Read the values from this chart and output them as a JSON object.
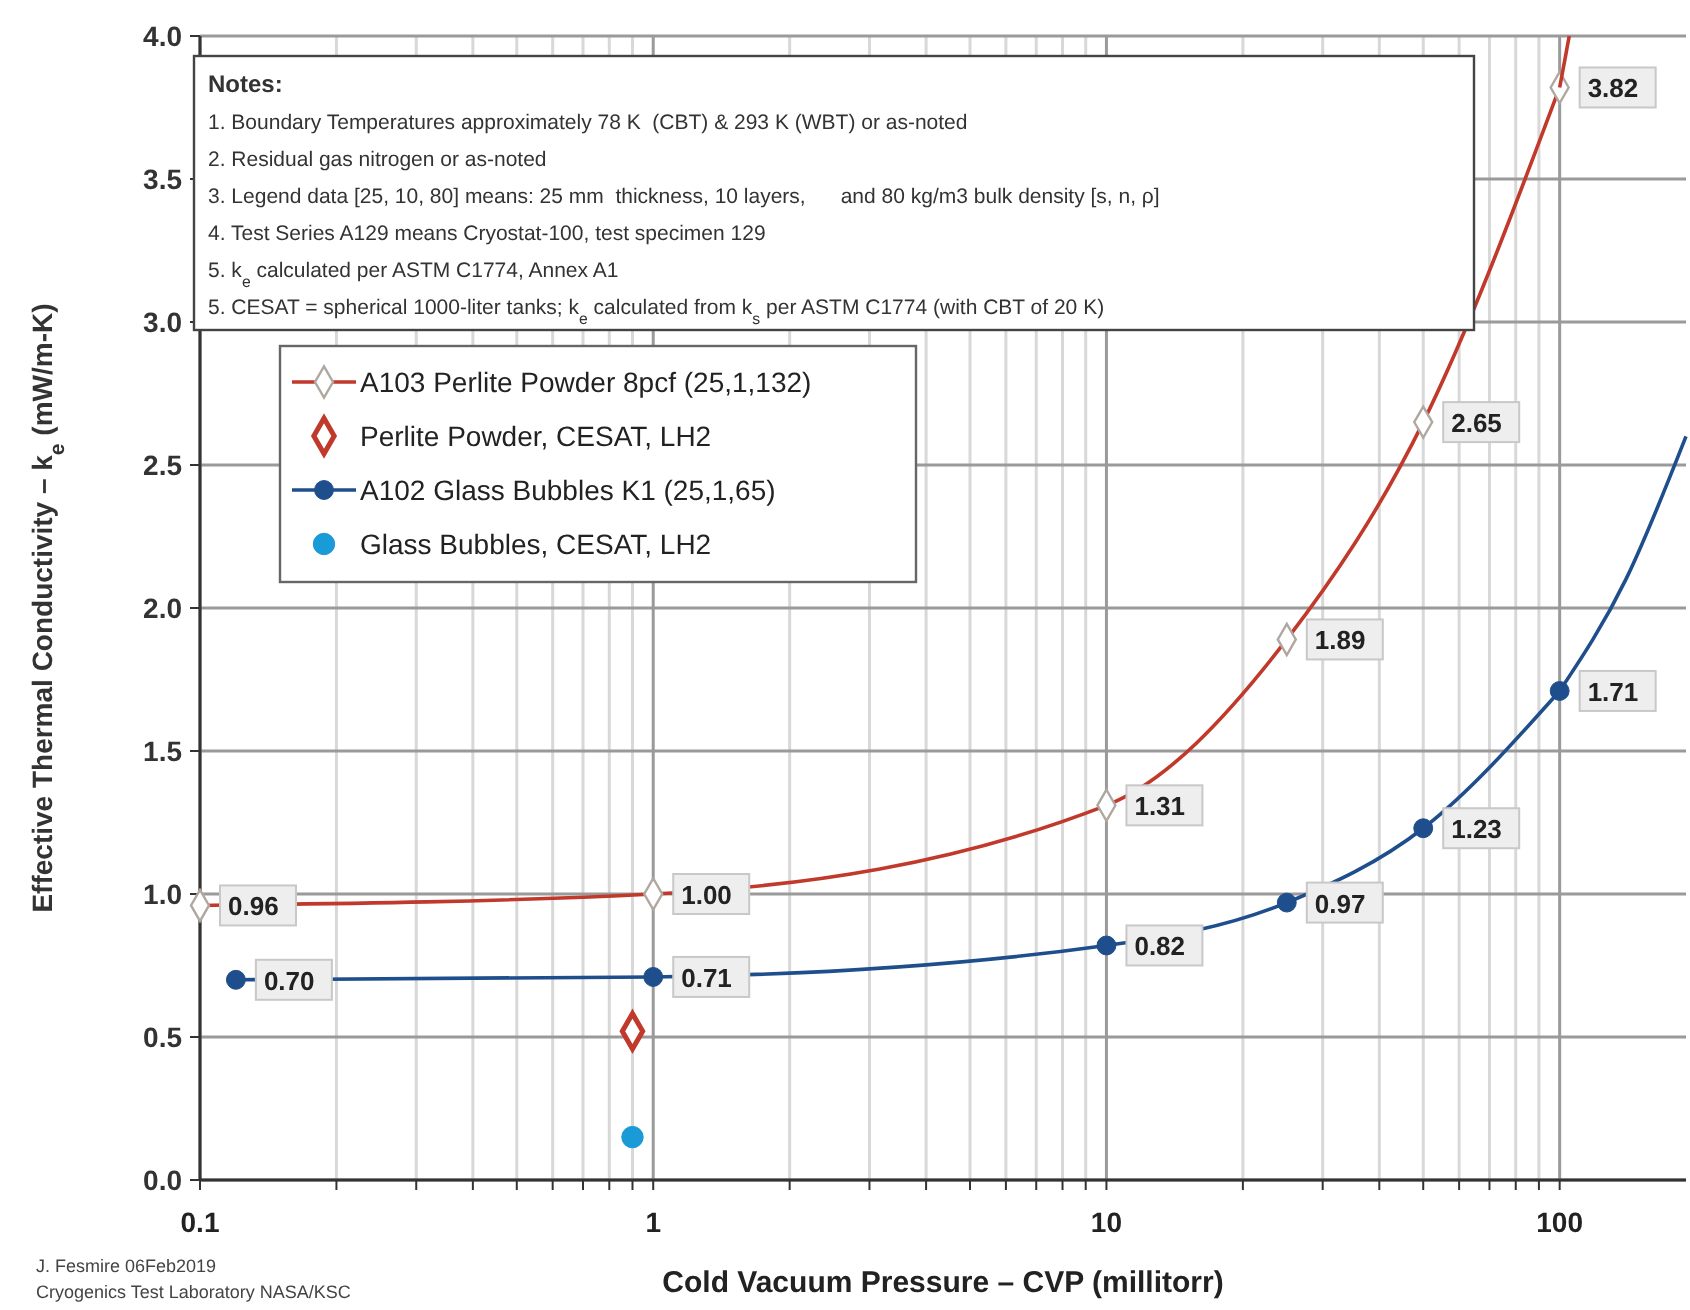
{
  "chart_data": {
    "type": "line",
    "xlabel": "Cold Vacuum Pressure – CVP (millitorr)",
    "ylabel": "Effective Thermal Conductivity – k$_{e}$ (mW/m-K)",
    "log": "x",
    "xlim": [
      0.1,
      190
    ],
    "ylim": [
      0,
      4
    ],
    "xticks": [
      0.1,
      {
        "value": 0.2,
        "label": null
      },
      {
        "value": 0.3,
        "label": null
      },
      {
        "value": 0.4,
        "label": null
      },
      {
        "value": 0.5,
        "label": null
      },
      {
        "value": 0.6,
        "label": null
      },
      {
        "value": 0.7,
        "label": null
      },
      {
        "value": 0.8,
        "label": null
      },
      {
        "value": 0.9,
        "label": null
      },
      1,
      {
        "value": 2,
        "label": null
      },
      {
        "value": 3,
        "label": null
      },
      {
        "value": 4,
        "label": null
      },
      {
        "value": 5,
        "label": null
      },
      {
        "value": 6,
        "label": null
      },
      {
        "value": 7,
        "label": null
      },
      {
        "value": 8,
        "label": null
      },
      {
        "value": 9,
        "label": null
      },
      10,
      {
        "value": 20,
        "label": null
      },
      {
        "value": 30,
        "label": null
      },
      {
        "value": 40,
        "label": null
      },
      {
        "value": 50,
        "label": null
      },
      {
        "value": 60,
        "label": null
      },
      {
        "value": 70,
        "label": null
      },
      {
        "value": 80,
        "label": null
      },
      {
        "value": 90,
        "label": null
      },
      100
    ],
    "yticks": [
      {
        "value": 0,
        "label": "0.0"
      },
      {
        "value": 0.5,
        "label": "0.5"
      },
      {
        "value": 1,
        "label": "1.0"
      },
      {
        "value": 1.5,
        "label": "1.5"
      },
      {
        "value": 2,
        "label": "2.0"
      },
      {
        "value": 2.5,
        "label": "2.5"
      },
      {
        "value": 3,
        "label": "3.0"
      },
      {
        "value": 3.5,
        "label": "3.5"
      },
      {
        "value": 4,
        "label": "4.0"
      }
    ],
    "grid": true,
    "legend": "top left",
    "series": [
      {
        "name": "A103 Perlite Powder 8pcf (25,1,132)",
        "marker": "diamond",
        "color": "#c0392b",
        "x": [
          0.1,
          1,
          10,
          25,
          50,
          100
        ],
        "values": [
          0.96,
          1.0,
          1.31,
          1.89,
          2.65,
          3.82
        ],
        "value_labels": [
          "0.96",
          "1.00",
          "1.31",
          "1.89",
          "2.65",
          "3.82"
        ]
      },
      {
        "name": "Perlite Powder, CESAT, LH2",
        "type": "scatter",
        "marker": "diamond",
        "color": "#c0392b",
        "x": [
          0.9
        ],
        "values": [
          0.52
        ]
      },
      {
        "name": "A102 Glass Bubbles K1 (25,1,65)",
        "marker": "circle",
        "color": "#1f4e8c",
        "x": [
          0.12,
          1,
          10,
          25,
          50,
          100
        ],
        "values": [
          0.7,
          0.71,
          0.82,
          0.97,
          1.23,
          1.71
        ],
        "value_labels": [
          "0.70",
          "0.71",
          "0.82",
          "0.97",
          "1.23",
          "1.71"
        ]
      },
      {
        "name": "Glass Bubbles, CESAT, LH2",
        "type": "scatter",
        "marker": "circle",
        "color": "#1a9ad6",
        "x": [
          0.9
        ],
        "values": [
          0.15
        ]
      },
      {
        "marker": "none",
        "color": "#c0392b",
        "x": [
          100,
          105
        ],
        "values": [
          3.82,
          4.0
        ]
      },
      {
        "marker": "none",
        "color": "#1f4e8c",
        "x": [
          100,
          140,
          190
        ],
        "values": [
          1.71,
          2.1,
          2.6
        ]
      }
    ],
    "annotations": [
      "Notes:\n1. Boundary Temperatures approximately 78 K  (CBT) & 293 K (WBT) or as-noted\n2. Residual gas nitrogen or as-noted\n3. Legend data [25, 10, 80] means: 25 mm  thickness, 10 layers,      and 80 kg/m3 bulk density [s, n, ρ]\n4. Test Series A129 means Cryostat-100, test specimen 129\n5. k$_{e}$ calculated per ASTM C1774, Annex A1\n5. CESAT = spherical 1000-liter tanks; k$_{e}$ calculated from k$_{s}$ per ASTM C1774 (with CBT of 20 K)",
      "J. Fesmire 06Feb2019\nCryogenics Test Laboratory NASA/KSC"
    ]
  }
}
